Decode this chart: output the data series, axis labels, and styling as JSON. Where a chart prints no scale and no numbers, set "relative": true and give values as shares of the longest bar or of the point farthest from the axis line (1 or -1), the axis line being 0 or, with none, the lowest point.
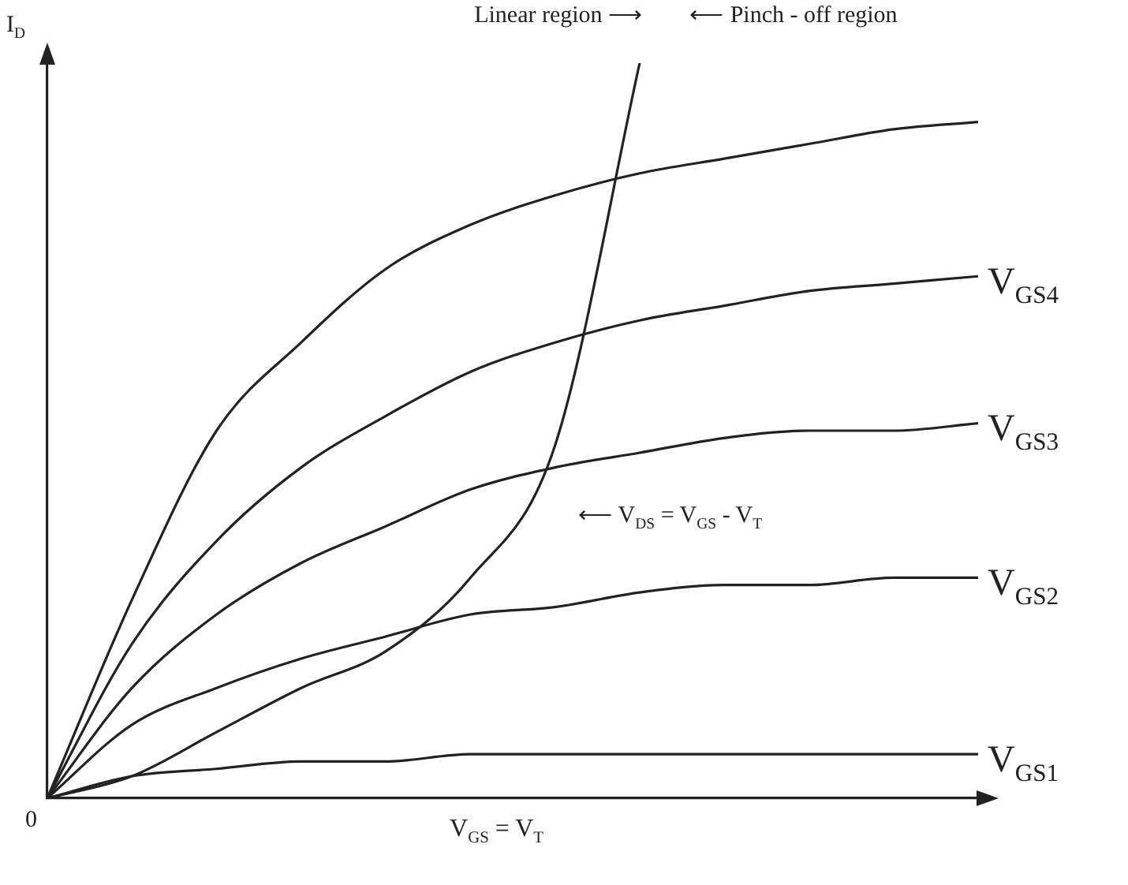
{
  "chart_data": {
    "type": "line",
    "relative": true,
    "tick_labels": false,
    "grid": false,
    "legend": false,
    "marker": "none",
    "line_style": "solid",
    "ylabel": "I$_{D}$",
    "xlabel": "V$_{GS}$ = V$_{T}$",
    "annotations": [
      "Linear region ⟶",
      "⟵ Pinch - off region",
      "⟵ V$_{DS}$ = V$_{GS}$ - V$_{T}$",
      "0"
    ],
    "categories": [
      null,
      null,
      null,
      null,
      null,
      null,
      null,
      null,
      null,
      null,
      null,
      null
    ],
    "series": [
      {
        "color": "#222222",
        "values": [
          0,
          0.27,
          0.5,
          0.62,
          0.72,
          0.78,
          0.82,
          0.85,
          0.87,
          0.89,
          0.91,
          0.92
        ]
      },
      {
        "name": "V$_{GS4}$",
        "color": "#222222",
        "values": [
          0,
          0.21,
          0.35,
          0.45,
          0.52,
          0.58,
          0.62,
          0.65,
          0.67,
          0.69,
          0.7,
          0.71
        ]
      },
      {
        "name": "V$_{GS3}$",
        "color": "#222222",
        "values": [
          0,
          0.15,
          0.25,
          0.32,
          0.37,
          0.42,
          0.45,
          0.47,
          0.49,
          0.5,
          0.5,
          0.51
        ]
      },
      {
        "name": "V$_{GS2}$",
        "color": "#222222",
        "values": [
          0,
          0.1,
          0.15,
          0.19,
          0.22,
          0.25,
          0.26,
          0.28,
          0.29,
          0.29,
          0.3,
          0.3
        ]
      },
      {
        "name": "V$_{GS1}$",
        "color": "#222222",
        "values": [
          0,
          0.03,
          0.04,
          0.05,
          0.05,
          0.06,
          0.06,
          0.06,
          0.06,
          0.06,
          0.06,
          0.06
        ]
      },
      {
        "color": "#222222",
        "values": [
          0,
          0.03,
          0.09,
          0.15,
          0.2,
          0.3,
          0.48,
          1.0,
          null,
          null,
          null,
          null
        ]
      }
    ]
  }
}
